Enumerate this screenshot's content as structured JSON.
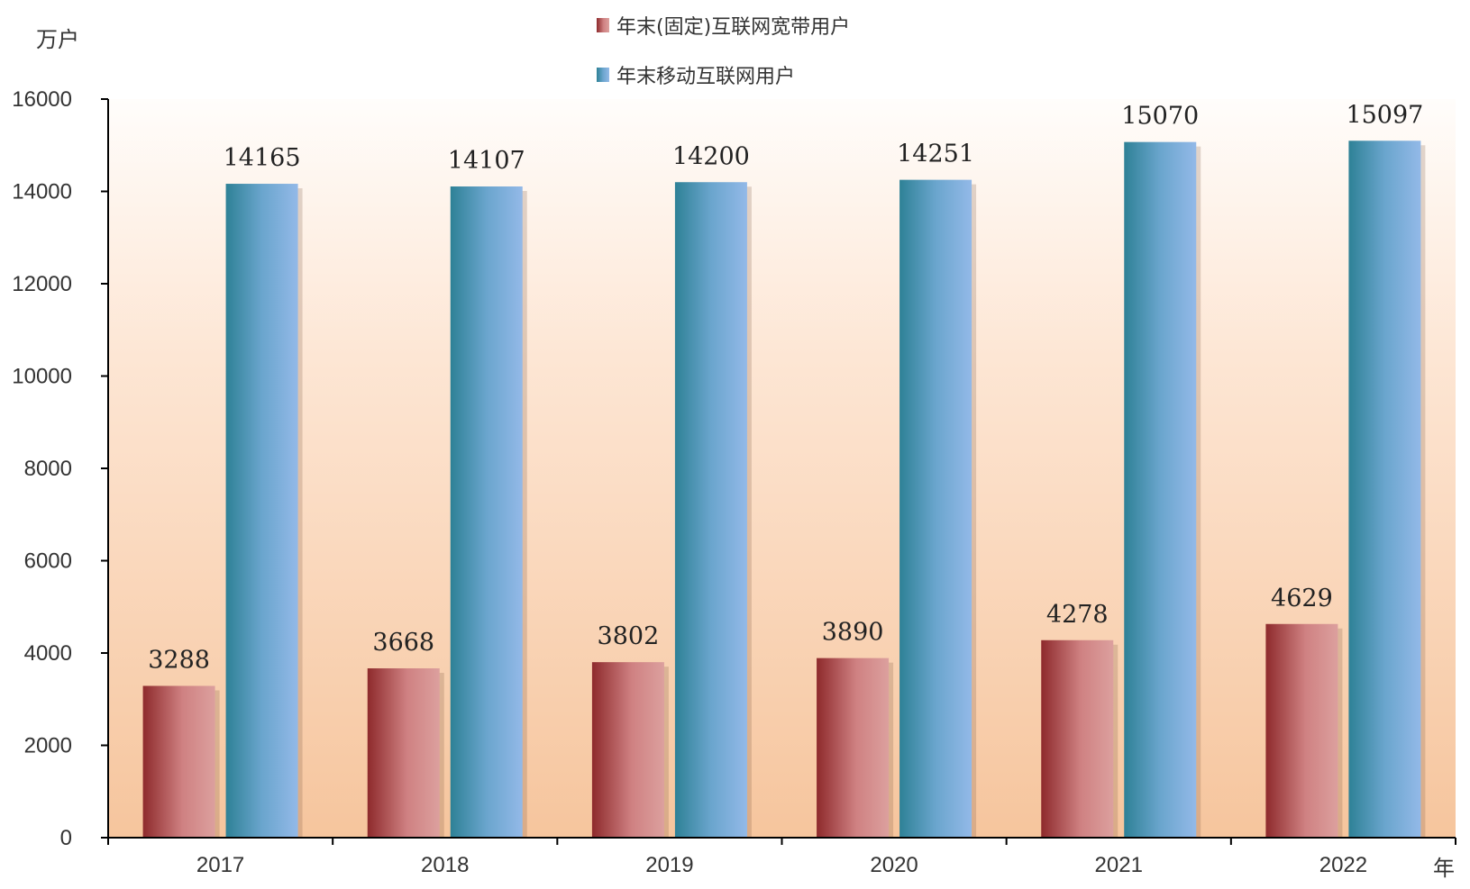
{
  "chart_data": {
    "type": "bar",
    "y_unit_label": "万户",
    "x_unit_label": "年",
    "categories": [
      "2017",
      "2018",
      "2019",
      "2020",
      "2021",
      "2022"
    ],
    "series": [
      {
        "name": "年末(固定)互联网宽带用户",
        "values": [
          3288,
          3668,
          3802,
          3890,
          4278,
          4629
        ],
        "color": "#b0484a"
      },
      {
        "name": "年末移动互联网用户",
        "values": [
          14165,
          14107,
          14200,
          14251,
          15070,
          15097
        ],
        "color": "#3f8fb0"
      }
    ],
    "ylim": [
      0,
      16000
    ],
    "yticks": [
      0,
      2000,
      4000,
      6000,
      8000,
      10000,
      12000,
      14000,
      16000
    ],
    "grid": false,
    "legend_position": "top-center"
  }
}
